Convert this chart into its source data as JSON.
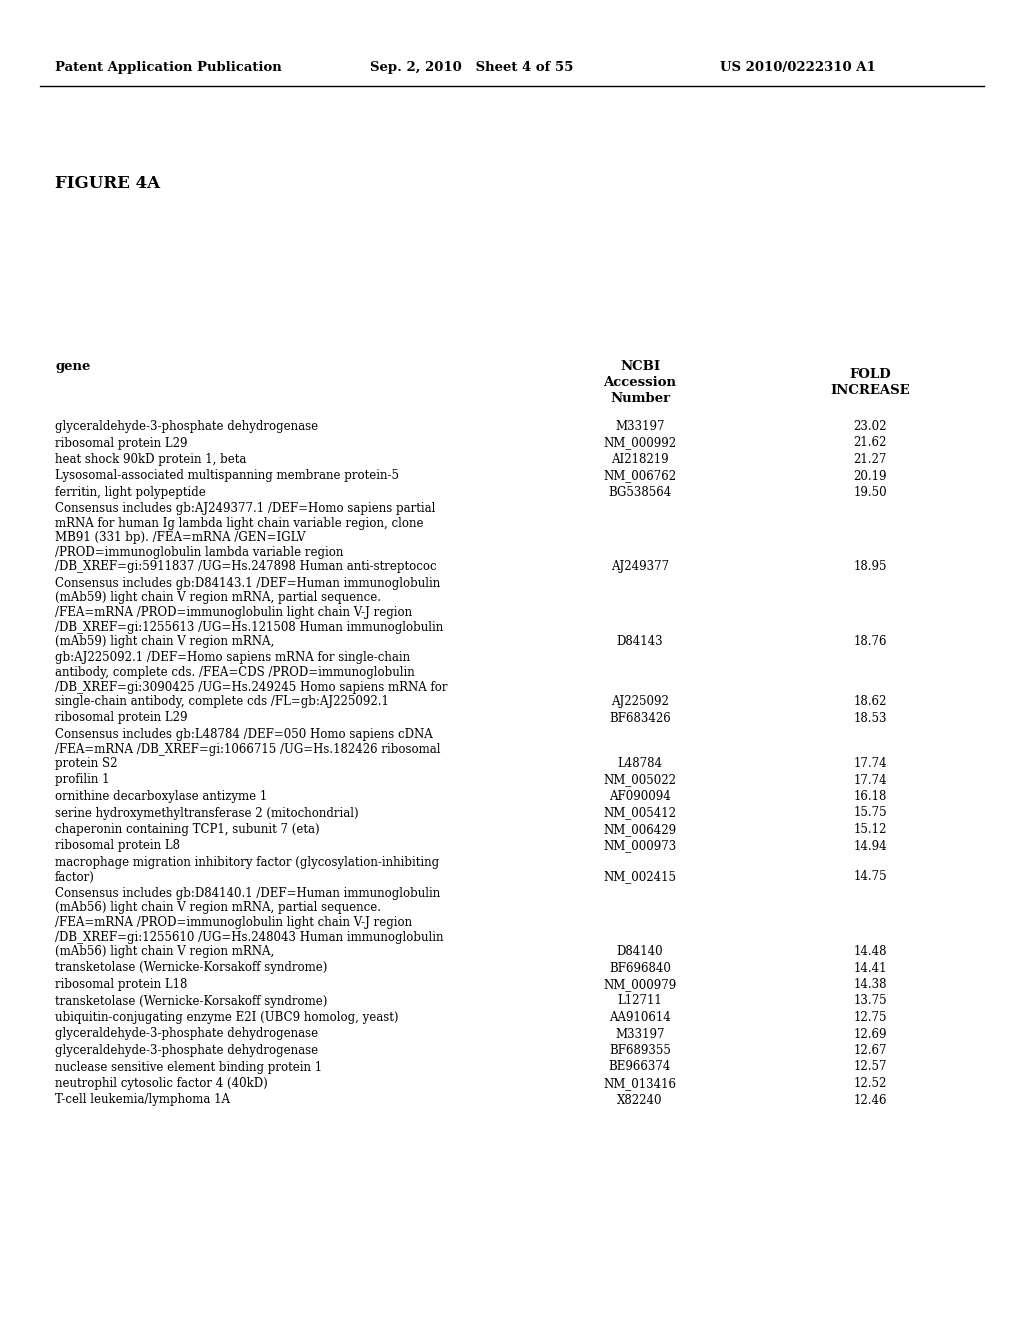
{
  "header_left": "Patent Application Publication",
  "header_mid": "Sep. 2, 2010   Sheet 4 of 55",
  "header_right": "US 2010/0222310 A1",
  "figure_label": "FIGURE 4A",
  "col_headers": {
    "gene": "gene",
    "ncbi_line1": "NCBI",
    "ncbi_line2": "Accession",
    "ncbi_line3": "Number",
    "fold_line1": "FOLD",
    "fold_line2": "INCREASE"
  },
  "rows": [
    {
      "gene": "glyceraldehyde-3-phosphate dehydrogenase",
      "accession": "M33197",
      "fold": "23.02",
      "nlines": 1
    },
    {
      "gene": "ribosomal protein L29",
      "accession": "NM_000992",
      "fold": "21.62",
      "nlines": 1
    },
    {
      "gene": "heat shock 90kD protein 1, beta",
      "accession": "AI218219",
      "fold": "21.27",
      "nlines": 1
    },
    {
      "gene": "Lysosomal-associated multispanning membrane protein-5",
      "accession": "NM_006762",
      "fold": "20.19",
      "nlines": 1
    },
    {
      "gene": "ferritin, light polypeptide",
      "accession": "BG538564",
      "fold": "19.50",
      "nlines": 1
    },
    {
      "gene": "Consensus includes gb:AJ249377.1 /DEF=Homo sapiens partial\nmRNA for human Ig lambda light chain variable region, clone\nMB91 (331 bp). /FEA=mRNA /GEN=IGLV\n/PROD=immunoglobulin lambda variable region\n/DB_XREF=gi:5911837 /UG=Hs.247898 Human anti-streptococ",
      "accession": "AJ249377",
      "fold": "18.95",
      "nlines": 5
    },
    {
      "gene": "Consensus includes gb:D84143.1 /DEF=Human immunoglobulin\n(mAb59) light chain V region mRNA, partial sequence.\n/FEA=mRNA /PROD=immunoglobulin light chain V-J region\n/DB_XREF=gi:1255613 /UG=Hs.121508 Human immunoglobulin\n(mAb59) light chain V region mRNA,",
      "accession": "D84143",
      "fold": "18.76",
      "nlines": 5
    },
    {
      "gene": "gb:AJ225092.1 /DEF=Homo sapiens mRNA for single-chain\nantibody, complete cds. /FEA=CDS /PROD=immunoglobulin\n/DB_XREF=gi:3090425 /UG=Hs.249245 Homo sapiens mRNA for\nsingle-chain antibody, complete cds /FL=gb:AJ225092.1",
      "accession": "AJ225092",
      "fold": "18.62",
      "nlines": 4
    },
    {
      "gene": "ribosomal protein L29",
      "accession": "BF683426",
      "fold": "18.53",
      "nlines": 1
    },
    {
      "gene": "Consensus includes gb:L48784 /DEF=050 Homo sapiens cDNA\n/FEA=mRNA /DB_XREF=gi:1066715 /UG=Hs.182426 ribosomal\nprotein S2",
      "accession": "L48784",
      "fold": "17.74",
      "nlines": 3
    },
    {
      "gene": "profilin 1",
      "accession": "NM_005022",
      "fold": "17.74",
      "nlines": 1
    },
    {
      "gene": "ornithine decarboxylase antizyme 1",
      "accession": "AF090094",
      "fold": "16.18",
      "nlines": 1
    },
    {
      "gene": "serine hydroxymethyltransferase 2 (mitochondrial)",
      "accession": "NM_005412",
      "fold": "15.75",
      "nlines": 1
    },
    {
      "gene": "chaperonin containing TCP1, subunit 7 (eta)",
      "accession": "NM_006429",
      "fold": "15.12",
      "nlines": 1
    },
    {
      "gene": "ribosomal protein L8",
      "accession": "NM_000973",
      "fold": "14.94",
      "nlines": 1
    },
    {
      "gene": "macrophage migration inhibitory factor (glycosylation-inhibiting\nfactor)",
      "accession": "NM_002415",
      "fold": "14.75",
      "nlines": 2
    },
    {
      "gene": "Consensus includes gb:D84140.1 /DEF=Human immunoglobulin\n(mAb56) light chain V region mRNA, partial sequence.\n/FEA=mRNA /PROD=immunoglobulin light chain V-J region\n/DB_XREF=gi:1255610 /UG=Hs.248043 Human immunoglobulin\n(mAb56) light chain V region mRNA,",
      "accession": "D84140",
      "fold": "14.48",
      "nlines": 5
    },
    {
      "gene": "transketolase (Wernicke-Korsakoff syndrome)",
      "accession": "BF696840",
      "fold": "14.41",
      "nlines": 1
    },
    {
      "gene": "ribosomal protein L18",
      "accession": "NM_000979",
      "fold": "14.38",
      "nlines": 1
    },
    {
      "gene": "transketolase (Wernicke-Korsakoff syndrome)",
      "accession": "L12711",
      "fold": "13.75",
      "nlines": 1
    },
    {
      "gene": "ubiquitin-conjugating enzyme E2I (UBC9 homolog, yeast)",
      "accession": "AA910614",
      "fold": "12.75",
      "nlines": 1
    },
    {
      "gene": "glyceraldehyde-3-phosphate dehydrogenase",
      "accession": "M33197",
      "fold": "12.69",
      "nlines": 1
    },
    {
      "gene": "glyceraldehyde-3-phosphate dehydrogenase",
      "accession": "BF689355",
      "fold": "12.67",
      "nlines": 1
    },
    {
      "gene": "nuclease sensitive element binding protein 1",
      "accession": "BE966374",
      "fold": "12.57",
      "nlines": 1
    },
    {
      "gene": "neutrophil cytosolic factor 4 (40kD)",
      "accession": "NM_013416",
      "fold": "12.52",
      "nlines": 1
    },
    {
      "gene": "T-cell leukemia/lymphoma 1A",
      "accession": "X82240",
      "fold": "12.46",
      "nlines": 1
    }
  ],
  "background_color": "#ffffff",
  "text_color": "#000000"
}
